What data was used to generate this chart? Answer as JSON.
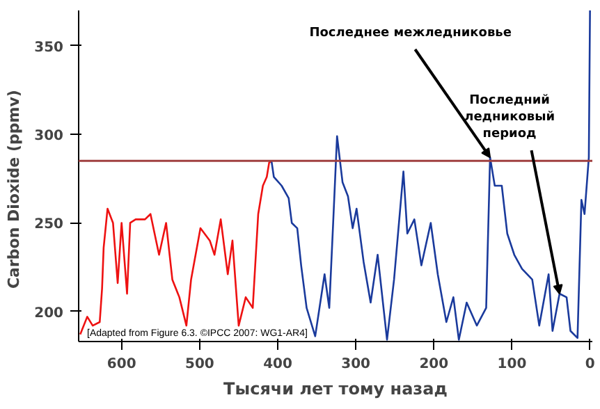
{
  "chart_data": {
    "type": "line",
    "xlabel": "Тысячи лет тому назад",
    "ylabel": "Carbon Dioxide      (ppmv)",
    "xlim": [
      655,
      -3
    ],
    "ylim": [
      183,
      370
    ],
    "xticks": [
      600,
      500,
      400,
      300,
      200,
      100,
      0
    ],
    "yticks": [
      200,
      250,
      300,
      350
    ],
    "grid": false,
    "series": [
      {
        "color": "#ee1111",
        "x": [
          653,
          644,
          637,
          628,
          625,
          623,
          618,
          611,
          605,
          600,
          593,
          589,
          582,
          570,
          563,
          552,
          543,
          535,
          526,
          517,
          511,
          499,
          487,
          481,
          473,
          464,
          458,
          450,
          441,
          432,
          425,
          419,
          414,
          411,
          408
        ],
        "values": [
          187,
          197,
          192,
          194,
          213,
          236,
          258,
          250,
          216,
          250,
          210,
          250,
          252,
          252,
          255,
          232,
          250,
          218,
          208,
          192,
          218,
          247,
          240,
          232,
          252,
          221,
          240,
          192,
          208,
          202,
          255,
          271,
          276,
          284,
          285
        ]
      },
      {
        "color": "#1a3a9c",
        "x": [
          408,
          405,
          395,
          386,
          382,
          375,
          370,
          363,
          352,
          340,
          334,
          329,
          324,
          317,
          310,
          304,
          299,
          290,
          281,
          272,
          260,
          251,
          239,
          234,
          225,
          216,
          204,
          195,
          184,
          175,
          168,
          158,
          145,
          133,
          128,
          122,
          113,
          106,
          97,
          87,
          74,
          65,
          53,
          48,
          39,
          30,
          25,
          16,
          11,
          7,
          1.5,
          0
        ],
        "values": [
          285,
          276,
          271,
          264,
          250,
          247,
          226,
          202,
          186,
          221,
          202,
          250,
          299,
          273,
          265,
          247,
          258,
          228,
          205,
          232,
          184,
          218,
          279,
          244,
          252,
          226,
          250,
          221,
          194,
          208,
          184,
          205,
          192,
          202,
          287,
          271,
          271,
          244,
          232,
          224,
          218,
          192,
          221,
          189,
          210,
          208,
          189,
          185,
          263,
          255,
          287,
          370
        ]
      }
    ],
    "ref_lines": [
      {
        "axis": "y",
        "value": 285,
        "color": "#a04040"
      }
    ],
    "annotations": [
      {
        "text": "Последнее межледниковье",
        "x": 128,
        "y": 287
      },
      {
        "text": "Последний\nледниковый\nпериод",
        "x": 39,
        "y": 210
      },
      "[Adapted from Figure 6.3. ©IPCC 2007: WG1-AR4]"
    ]
  }
}
